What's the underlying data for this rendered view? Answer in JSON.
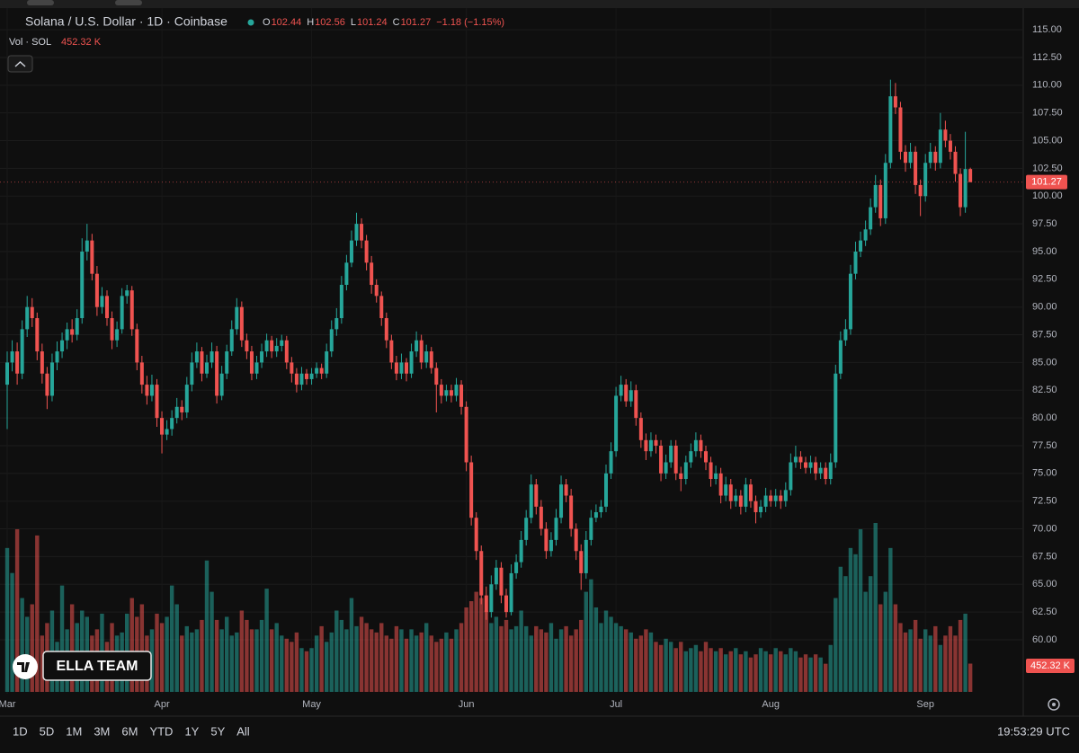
{
  "chart_data": {
    "type": "candlestick",
    "title": "Solana / U.S. Dollar · 1D · Coinbase",
    "ohlc_letters": [
      "O",
      "H",
      "L",
      "C"
    ],
    "change": "−1.18 (−1.15%)",
    "volume_title": "Vol · SOL",
    "volume_value_label": "452.32 K",
    "watermark": "ELLA TEAM",
    "timeframes": [
      "1D",
      "5D",
      "1M",
      "3M",
      "6M",
      "YTD",
      "1Y",
      "5Y",
      "All"
    ],
    "clock": "19:53:29 UTC",
    "up_color": "#26a69a",
    "down_color": "#ef5350",
    "grid": true,
    "ylim": [
      55.3,
      115.9
    ],
    "yticks": [
      {
        "value": 60,
        "label": "60.00"
      },
      {
        "value": 62.5,
        "label": "62.50"
      },
      {
        "value": 65,
        "label": "65.00"
      },
      {
        "value": 67.5,
        "label": "67.50"
      },
      {
        "value": 70,
        "label": "70.00"
      },
      {
        "value": 72.5,
        "label": "72.50"
      },
      {
        "value": 75,
        "label": "75.00"
      },
      {
        "value": 77.5,
        "label": "77.50"
      },
      {
        "value": 80,
        "label": "80.00"
      },
      {
        "value": 82.5,
        "label": "82.50"
      },
      {
        "value": 85,
        "label": "85.00"
      },
      {
        "value": 87.5,
        "label": "87.50"
      },
      {
        "value": 90,
        "label": "90.00"
      },
      {
        "value": 92.5,
        "label": "92.50"
      },
      {
        "value": 95,
        "label": "95.00"
      },
      {
        "value": 97.5,
        "label": "97.50"
      },
      {
        "value": 100,
        "label": "100.00"
      },
      {
        "value": 102.5,
        "label": "102.50"
      },
      {
        "value": 105,
        "label": "105.00"
      },
      {
        "value": 107.5,
        "label": "107.50"
      },
      {
        "value": 110,
        "label": "110.00"
      },
      {
        "value": 112.5,
        "label": "112.50"
      },
      {
        "value": 115,
        "label": "115.00"
      }
    ],
    "xticks": [
      {
        "value": 0,
        "label": "Mar"
      },
      {
        "value": 31,
        "label": "Apr"
      },
      {
        "value": 61,
        "label": "May"
      },
      {
        "value": 92,
        "label": "Jun"
      },
      {
        "value": 122,
        "label": "Jul"
      },
      {
        "value": 153,
        "label": "Aug"
      },
      {
        "value": 184,
        "label": "Sep"
      }
    ],
    "candles": [
      [
        83,
        86,
        79,
        85
      ],
      [
        85,
        87,
        84.2,
        86
      ],
      [
        86,
        86.8,
        83,
        84
      ],
      [
        84,
        88.8,
        83.5,
        88
      ],
      [
        88,
        91,
        87.3,
        90
      ],
      [
        90,
        90.8,
        88.2,
        89
      ],
      [
        89,
        89.5,
        85.2,
        86
      ],
      [
        86,
        86.7,
        83.1,
        84
      ],
      [
        84,
        84.6,
        80.8,
        82
      ],
      [
        82,
        85.8,
        81.5,
        85
      ],
      [
        85,
        86.9,
        84.3,
        86
      ],
      [
        86,
        87.7,
        85.4,
        87
      ],
      [
        87,
        88.6,
        86.2,
        88
      ],
      [
        88,
        88.9,
        86.8,
        87.5
      ],
      [
        87.5,
        89.8,
        87,
        89
      ],
      [
        89,
        96.2,
        88.5,
        95
      ],
      [
        95,
        97.5,
        94.2,
        96
      ],
      [
        96,
        96.6,
        92.4,
        93
      ],
      [
        93,
        93.7,
        89.2,
        90
      ],
      [
        90,
        91.8,
        89.4,
        91
      ],
      [
        91,
        91.5,
        88.3,
        89
      ],
      [
        89,
        89.6,
        86.2,
        87
      ],
      [
        87,
        88.7,
        86.4,
        88
      ],
      [
        88,
        91.7,
        87.6,
        91
      ],
      [
        91,
        92,
        90.3,
        91.5
      ],
      [
        91.5,
        91.9,
        87.4,
        88
      ],
      [
        88,
        88.5,
        84.3,
        85
      ],
      [
        85,
        85.6,
        82.2,
        83
      ],
      [
        83,
        83.8,
        81.2,
        82
      ],
      [
        82,
        83.9,
        81.5,
        83
      ],
      [
        83,
        83.5,
        79.2,
        80
      ],
      [
        80,
        80.6,
        76.8,
        78.5
      ],
      [
        78.5,
        79.8,
        78,
        79
      ],
      [
        79,
        80.7,
        78.4,
        80
      ],
      [
        80,
        81.8,
        79.5,
        81
      ],
      [
        81,
        81.6,
        79.8,
        80.5
      ],
      [
        80.5,
        83.7,
        80,
        83
      ],
      [
        83,
        85.9,
        82.4,
        85
      ],
      [
        85,
        86.8,
        84.5,
        86
      ],
      [
        86,
        86.4,
        83.3,
        84
      ],
      [
        84,
        85.7,
        83.6,
        85
      ],
      [
        85,
        86.8,
        84.5,
        86
      ],
      [
        86,
        86.5,
        81.3,
        82
      ],
      [
        82,
        84.7,
        81.6,
        84
      ],
      [
        84,
        86.6,
        83.5,
        86
      ],
      [
        86,
        88.8,
        85.6,
        88
      ],
      [
        88,
        90.8,
        87.5,
        90
      ],
      [
        90,
        90.5,
        86.4,
        87
      ],
      [
        87,
        87.6,
        85.3,
        86
      ],
      [
        86,
        86.5,
        83.4,
        84
      ],
      [
        84,
        85.6,
        83.5,
        85
      ],
      [
        85,
        86.7,
        84.5,
        86
      ],
      [
        86,
        87.6,
        85.5,
        87
      ],
      [
        87,
        87.4,
        85.4,
        86
      ],
      [
        86,
        87.2,
        85.5,
        86.5
      ],
      [
        86.5,
        87.5,
        86,
        87
      ],
      [
        87,
        87.4,
        84.4,
        85
      ],
      [
        85,
        85.5,
        83.2,
        84
      ],
      [
        84,
        84.5,
        82.3,
        83
      ],
      [
        83,
        84.6,
        82.5,
        84
      ],
      [
        84,
        84.4,
        83,
        83.5
      ],
      [
        83.5,
        84.5,
        83,
        84
      ],
      [
        84,
        85,
        83.6,
        84.5
      ],
      [
        84.5,
        84.9,
        83.5,
        84
      ],
      [
        84,
        86.7,
        83.6,
        86
      ],
      [
        86,
        88.8,
        85.5,
        88
      ],
      [
        88,
        89.9,
        87.4,
        89
      ],
      [
        89,
        92.8,
        88.5,
        92
      ],
      [
        92,
        94.7,
        91.5,
        94
      ],
      [
        94,
        96.9,
        93.6,
        96
      ],
      [
        96,
        98.5,
        95.5,
        97.5
      ],
      [
        97.5,
        98,
        95.3,
        96
      ],
      [
        96,
        96.5,
        93.3,
        94
      ],
      [
        94,
        94.6,
        91.2,
        92
      ],
      [
        92,
        92.5,
        90.4,
        91
      ],
      [
        91,
        91.4,
        88.3,
        89
      ],
      [
        89,
        89.5,
        86.3,
        87
      ],
      [
        87,
        87.5,
        84.4,
        85
      ],
      [
        85,
        85.6,
        83.4,
        84
      ],
      [
        84,
        85.8,
        83.5,
        85
      ],
      [
        85,
        85.4,
        83.3,
        84
      ],
      [
        84,
        86.7,
        83.6,
        86
      ],
      [
        86,
        87.8,
        85.5,
        87
      ],
      [
        87,
        87.5,
        84.4,
        85
      ],
      [
        85,
        86.6,
        84.5,
        86
      ],
      [
        86,
        86.4,
        84,
        84.5
      ],
      [
        84.5,
        85,
        80.5,
        83
      ],
      [
        83,
        83.5,
        81.3,
        82
      ],
      [
        82,
        83,
        81.5,
        82.5
      ],
      [
        82.5,
        83,
        81.4,
        82
      ],
      [
        82,
        83.6,
        81.5,
        83
      ],
      [
        83,
        83.4,
        80.3,
        81
      ],
      [
        81,
        81.5,
        75.2,
        76
      ],
      [
        76,
        76.6,
        70.3,
        71
      ],
      [
        71,
        71.5,
        67.2,
        68
      ],
      [
        68,
        68.5,
        63.2,
        64
      ],
      [
        64,
        64.8,
        61.8,
        62.5
      ],
      [
        62.5,
        65.8,
        62,
        65
      ],
      [
        65,
        67.2,
        64.5,
        66.5
      ],
      [
        66.5,
        67,
        63.3,
        64
      ],
      [
        64,
        64.6,
        62,
        62.5
      ],
      [
        62.5,
        66.8,
        62.2,
        66
      ],
      [
        66,
        67.7,
        65.5,
        67
      ],
      [
        67,
        69.8,
        66.5,
        69
      ],
      [
        69,
        71.7,
        68.5,
        71
      ],
      [
        71,
        74.9,
        70.5,
        74
      ],
      [
        74,
        74.5,
        71.3,
        72
      ],
      [
        72,
        72.6,
        69.4,
        70
      ],
      [
        70,
        70.6,
        67.3,
        68
      ],
      [
        68,
        69.7,
        67.5,
        69
      ],
      [
        69,
        71.8,
        68.5,
        71
      ],
      [
        71,
        74.8,
        70.5,
        74
      ],
      [
        74,
        74.5,
        72.4,
        73
      ],
      [
        73,
        73.6,
        69.3,
        70
      ],
      [
        70,
        70.5,
        67.2,
        68
      ],
      [
        68,
        68.6,
        64.5,
        66
      ],
      [
        66,
        69.8,
        65.5,
        69
      ],
      [
        69,
        71.7,
        68.5,
        71
      ],
      [
        71,
        72.2,
        70.6,
        71.5
      ],
      [
        71.5,
        72.6,
        71,
        72
      ],
      [
        72,
        75.8,
        71.5,
        75
      ],
      [
        75,
        77.8,
        74.5,
        77
      ],
      [
        77,
        82.8,
        76.5,
        82
      ],
      [
        82,
        83.8,
        81.5,
        83
      ],
      [
        83,
        83.5,
        81,
        81.5
      ],
      [
        81.5,
        83.3,
        81,
        82.5
      ],
      [
        82.5,
        83,
        79.3,
        80
      ],
      [
        80,
        80.5,
        77.3,
        78
      ],
      [
        78,
        78.6,
        76.2,
        77
      ],
      [
        77,
        78.7,
        76.5,
        78
      ],
      [
        78,
        78.5,
        76.8,
        77.5
      ],
      [
        77.5,
        78,
        74.3,
        75
      ],
      [
        75,
        76.7,
        74.5,
        76
      ],
      [
        76,
        78,
        75.5,
        77.5
      ],
      [
        77.5,
        78,
        74.4,
        75
      ],
      [
        75,
        75.6,
        73.4,
        74.5
      ],
      [
        74.5,
        76.6,
        74,
        76
      ],
      [
        76,
        77.7,
        75.5,
        77
      ],
      [
        77,
        78.7,
        76.5,
        78
      ],
      [
        78,
        78.5,
        76.4,
        77
      ],
      [
        77,
        77.5,
        75.3,
        76
      ],
      [
        76,
        76.5,
        73.8,
        74.5
      ],
      [
        74.5,
        75.7,
        74,
        75
      ],
      [
        75,
        75.5,
        72.3,
        73
      ],
      [
        73,
        74.7,
        72.5,
        74
      ],
      [
        74,
        74.5,
        71.8,
        72.5
      ],
      [
        72.5,
        73.6,
        72,
        73
      ],
      [
        73,
        73.5,
        71.3,
        72
      ],
      [
        72,
        74.6,
        71.5,
        74
      ],
      [
        74,
        74.5,
        71.9,
        72.5
      ],
      [
        72.5,
        73,
        70.5,
        71.5
      ],
      [
        71.5,
        72.6,
        71,
        72
      ],
      [
        72,
        73.7,
        71.5,
        73
      ],
      [
        73,
        73.5,
        72,
        72.5
      ],
      [
        72.5,
        73.6,
        72,
        73
      ],
      [
        73,
        73.5,
        71.8,
        72.5
      ],
      [
        72.5,
        74.2,
        72,
        73.5
      ],
      [
        73.5,
        76.8,
        73,
        76
      ],
      [
        76,
        77.5,
        75.5,
        76.5
      ],
      [
        76.5,
        77,
        75.4,
        76
      ],
      [
        76,
        76.5,
        75,
        75.5
      ],
      [
        75.5,
        76.6,
        75,
        76
      ],
      [
        76,
        76.5,
        74.4,
        75
      ],
      [
        75,
        76,
        74.5,
        75.5
      ],
      [
        75.5,
        76,
        74,
        74.5
      ],
      [
        74.5,
        76.8,
        74,
        76
      ],
      [
        76,
        84.8,
        75.5,
        84
      ],
      [
        84,
        87.8,
        83.5,
        87
      ],
      [
        87,
        88.9,
        86.5,
        88
      ],
      [
        88,
        93.8,
        87.5,
        93
      ],
      [
        93,
        95.9,
        92.5,
        95
      ],
      [
        95,
        96.8,
        94.5,
        96
      ],
      [
        96,
        97.8,
        95.5,
        97
      ],
      [
        97,
        99.8,
        96.5,
        99
      ],
      [
        99,
        101.9,
        98.5,
        101
      ],
      [
        101,
        101.5,
        97.3,
        98
      ],
      [
        98,
        103.8,
        97.5,
        103
      ],
      [
        103,
        110.5,
        102.5,
        109
      ],
      [
        109,
        110.2,
        107.4,
        108
      ],
      [
        108,
        108.5,
        103.3,
        104
      ],
      [
        104,
        104.6,
        102.2,
        103
      ],
      [
        103,
        104.8,
        102.5,
        104
      ],
      [
        104,
        104.5,
        100.2,
        101
      ],
      [
        101,
        101.5,
        98.2,
        100
      ],
      [
        100,
        103.8,
        99.5,
        103
      ],
      [
        103,
        104.8,
        102.5,
        104
      ],
      [
        104,
        104.5,
        102.3,
        103
      ],
      [
        103,
        107.5,
        102.5,
        106
      ],
      [
        106,
        106.8,
        104.4,
        105
      ],
      [
        105,
        105.6,
        103.3,
        104
      ],
      [
        104,
        104.5,
        101.3,
        102
      ],
      [
        102,
        102.5,
        98.2,
        99
      ],
      [
        99,
        105.8,
        98.5,
        102.44
      ],
      [
        102.44,
        102.56,
        101.24,
        101.27
      ]
    ],
    "volume": [
      2300,
      1900,
      2600,
      1500,
      1200,
      1400,
      2500,
      900,
      1100,
      1300,
      800,
      1700,
      1000,
      1400,
      1100,
      1300,
      1200,
      900,
      1000,
      1250,
      800,
      1100,
      900,
      950,
      1250,
      1500,
      1200,
      1400,
      900,
      1000,
      1250,
      1100,
      1200,
      1700,
      1400,
      900,
      1050,
      950,
      1000,
      1150,
      2100,
      1600,
      1150,
      1000,
      1200,
      900,
      950,
      1300,
      1150,
      1000,
      1000,
      1150,
      1650,
      1000,
      1100,
      900,
      850,
      800,
      950,
      700,
      650,
      700,
      900,
      1050,
      800,
      950,
      1300,
      1150,
      1000,
      1500,
      1050,
      1200,
      1100,
      1000,
      950,
      1100,
      900,
      850,
      1050,
      1000,
      850,
      1000,
      900,
      950,
      1100,
      900,
      800,
      850,
      950,
      850,
      1000,
      1100,
      1350,
      1450,
      1600,
      1500,
      1300,
      1100,
      1200,
      1050,
      1150,
      1000,
      1050,
      1300,
      1050,
      900,
      1050,
      1000,
      950,
      1100,
      850,
      1000,
      1050,
      900,
      1000,
      1150,
      1600,
      1800,
      1350,
      1100,
      1300,
      1200,
      1100,
      1050,
      1000,
      950,
      850,
      900,
      1000,
      950,
      800,
      750,
      850,
      800,
      700,
      800,
      650,
      700,
      750,
      650,
      800,
      700,
      650,
      700,
      600,
      650,
      700,
      600,
      650,
      550,
      600,
      700,
      650,
      600,
      700,
      650,
      600,
      700,
      650,
      550,
      600,
      550,
      600,
      550,
      450,
      750,
      1500,
      2000,
      1850,
      2300,
      2200,
      2600,
      1600,
      1850,
      2700,
      1400,
      1600,
      2300,
      1400,
      1100,
      950,
      1000,
      1150,
      850,
      1000,
      900,
      1050,
      750,
      900,
      1050,
      900,
      1150,
      1250,
      452.32
    ]
  }
}
